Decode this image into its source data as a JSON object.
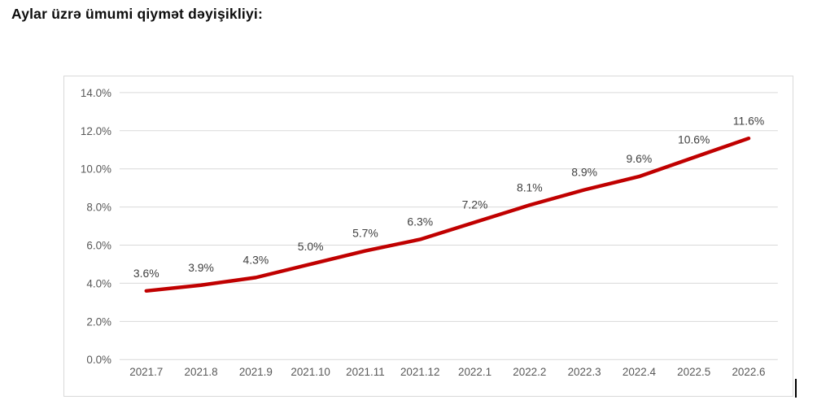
{
  "page": {
    "title": "Aylar üzrə ümumi qiymət dəyişikliyi:"
  },
  "chart_data": {
    "type": "line",
    "title": "Aylar üzrə ümumi qiymət dəyişikliyi:",
    "categories": [
      "2021.7",
      "2021.8",
      "2021.9",
      "2021.10",
      "2021.11",
      "2021.12",
      "2022.1",
      "2022.2",
      "2022.3",
      "2022.4",
      "2022.5",
      "2022.6"
    ],
    "series": [
      {
        "name": "ümumi qiymət dəyişikliyi",
        "values": [
          3.6,
          3.9,
          4.3,
          5.0,
          5.7,
          6.3,
          7.2,
          8.1,
          8.9,
          9.6,
          10.6,
          11.6
        ],
        "data_labels": [
          "3.6%",
          "3.9%",
          "4.3%",
          "5.0%",
          "5.7%",
          "6.3%",
          "7.2%",
          "8.1%",
          "8.9%",
          "9.6%",
          "10.6%",
          "11.6%"
        ]
      }
    ],
    "xlabel": "",
    "ylabel": "",
    "ylim": [
      0,
      14
    ],
    "y_ticks": [
      "0.0%",
      "2.0%",
      "4.0%",
      "6.0%",
      "8.0%",
      "10.0%",
      "12.0%",
      "14.0%"
    ],
    "grid": true,
    "legend": "none",
    "colors": {
      "line": "#c00000",
      "data_label": "#404040",
      "axis_label": "#595959",
      "gridline": "#d9d9d9",
      "chart_border": "#d9d9d9",
      "background": "#ffffff"
    }
  }
}
